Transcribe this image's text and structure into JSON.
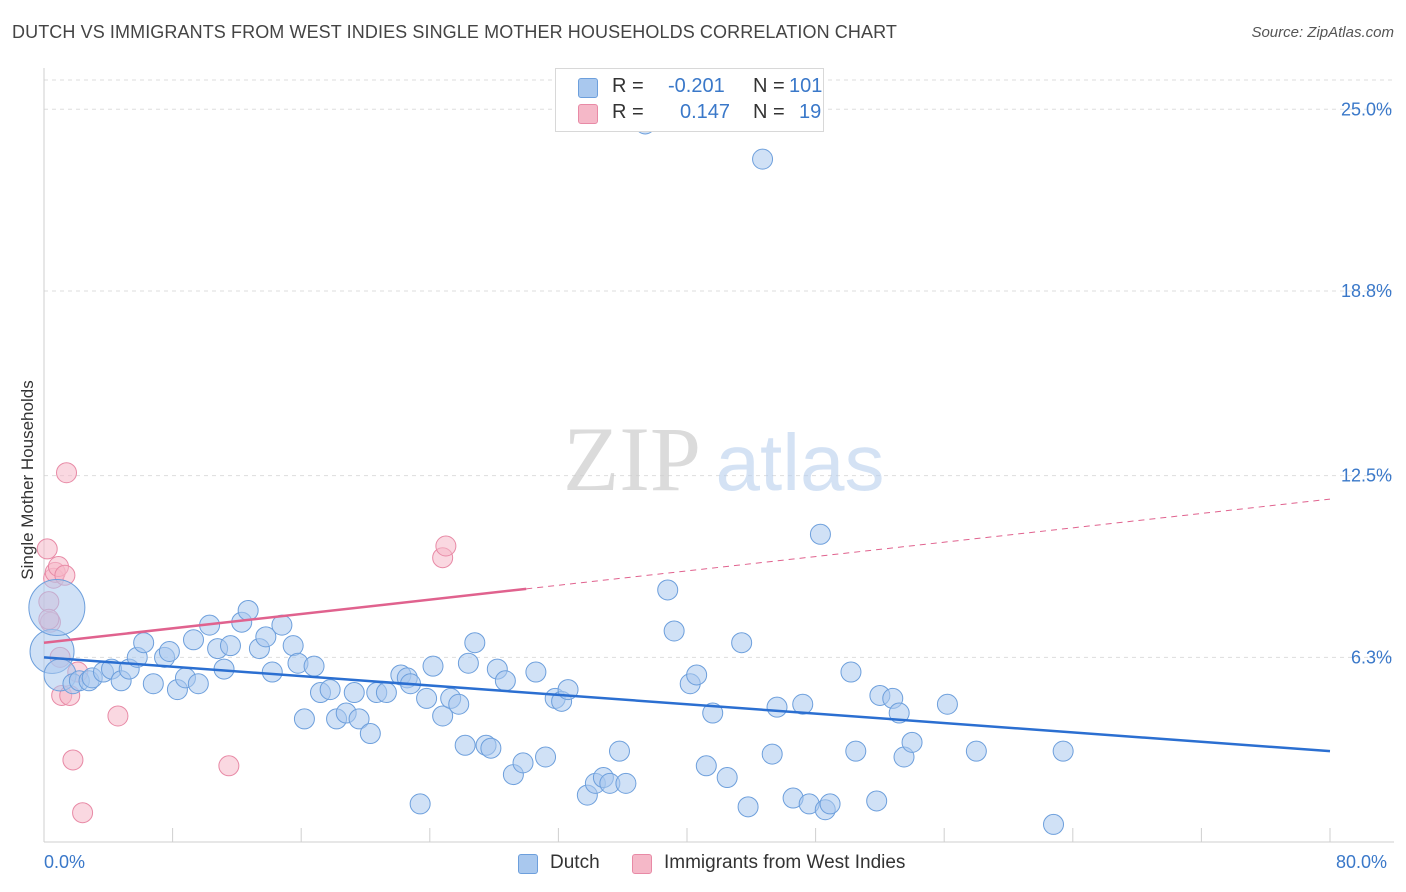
{
  "title": "DUTCH VS IMMIGRANTS FROM WEST INDIES SINGLE MOTHER HOUSEHOLDS CORRELATION CHART",
  "source": "Source: ZipAtlas.com",
  "watermark": {
    "zip": "ZIP",
    "atlas": "atlas"
  },
  "colors": {
    "dutch_fill": "#a9c8ee",
    "dutch_stroke": "#6d9fdc",
    "dutch_line": "#2b6fd1",
    "wi_fill": "#f5b8c8",
    "wi_stroke": "#e88aa6",
    "wi_line": "#e0628e",
    "grid": "#dddddd",
    "tick_label": "#3a78c9"
  },
  "legend_top": {
    "rows": [
      {
        "r_label": "R =",
        "r_value": "-0.201",
        "n_label": "N =",
        "n_value": "101"
      },
      {
        "r_label": "R =",
        "r_value": "0.147",
        "n_label": "N =",
        "n_value": "19"
      }
    ]
  },
  "legend_bottom": {
    "dutch": "Dutch",
    "west_indies": "Immigrants from West Indies"
  },
  "x_labels": {
    "left": "0.0%",
    "right": "80.0%"
  },
  "chart_data": {
    "type": "scatter",
    "ylabel": "Single Mother Households",
    "xlabel": "",
    "xlim": [
      0,
      80
    ],
    "ylim": [
      0,
      26
    ],
    "y_ticks": [
      {
        "value": 25.0,
        "label": "25.0%"
      },
      {
        "value": 18.8,
        "label": "18.8%"
      },
      {
        "value": 12.5,
        "label": "12.5%"
      },
      {
        "value": 6.3,
        "label": "6.3%"
      }
    ],
    "grid": true,
    "legend_position": "top-center",
    "series": [
      {
        "name": "Dutch",
        "r": -0.201,
        "n": 101,
        "trend": {
          "x": [
            0,
            80
          ],
          "y": [
            6.3,
            3.1
          ]
        },
        "points": [
          [
            0.5,
            6.5,
            22
          ],
          [
            0.8,
            8.0,
            28
          ],
          [
            1.0,
            5.7,
            16
          ],
          [
            1.8,
            5.4,
            10
          ],
          [
            2.2,
            5.5,
            10
          ],
          [
            2.8,
            5.5,
            10
          ],
          [
            3.0,
            5.6,
            10
          ],
          [
            3.7,
            5.8,
            10
          ],
          [
            4.2,
            5.9,
            10
          ],
          [
            4.8,
            5.5,
            10
          ],
          [
            5.3,
            5.9,
            10
          ],
          [
            5.8,
            6.3,
            10
          ],
          [
            6.2,
            6.8,
            10
          ],
          [
            6.8,
            5.4,
            10
          ],
          [
            7.5,
            6.3,
            10
          ],
          [
            7.8,
            6.5,
            10
          ],
          [
            8.3,
            5.2,
            10
          ],
          [
            8.8,
            5.6,
            10
          ],
          [
            9.3,
            6.9,
            10
          ],
          [
            9.6,
            5.4,
            10
          ],
          [
            10.3,
            7.4,
            10
          ],
          [
            10.8,
            6.6,
            10
          ],
          [
            11.2,
            5.9,
            10
          ],
          [
            11.6,
            6.7,
            10
          ],
          [
            12.3,
            7.5,
            10
          ],
          [
            12.7,
            7.9,
            10
          ],
          [
            13.4,
            6.6,
            10
          ],
          [
            13.8,
            7.0,
            10
          ],
          [
            14.2,
            5.8,
            10
          ],
          [
            14.8,
            7.4,
            10
          ],
          [
            15.5,
            6.7,
            10
          ],
          [
            15.8,
            6.1,
            10
          ],
          [
            16.2,
            4.2,
            10
          ],
          [
            16.8,
            6.0,
            10
          ],
          [
            17.2,
            5.1,
            10
          ],
          [
            17.8,
            5.2,
            10
          ],
          [
            18.2,
            4.2,
            10
          ],
          [
            18.8,
            4.4,
            10
          ],
          [
            19.3,
            5.1,
            10
          ],
          [
            19.6,
            4.2,
            10
          ],
          [
            20.3,
            3.7,
            10
          ],
          [
            20.7,
            5.1,
            10
          ],
          [
            21.3,
            5.1,
            10
          ],
          [
            22.2,
            5.7,
            10
          ],
          [
            22.6,
            5.6,
            10
          ],
          [
            22.8,
            5.4,
            10
          ],
          [
            23.4,
            1.3,
            10
          ],
          [
            23.8,
            4.9,
            10
          ],
          [
            24.2,
            6.0,
            10
          ],
          [
            24.8,
            4.3,
            10
          ],
          [
            25.3,
            4.9,
            10
          ],
          [
            25.8,
            4.7,
            10
          ],
          [
            26.2,
            3.3,
            10
          ],
          [
            26.4,
            6.1,
            10
          ],
          [
            26.8,
            6.8,
            10
          ],
          [
            27.5,
            3.3,
            10
          ],
          [
            27.8,
            3.2,
            10
          ],
          [
            28.2,
            5.9,
            10
          ],
          [
            28.7,
            5.5,
            10
          ],
          [
            29.2,
            2.3,
            10
          ],
          [
            29.8,
            2.7,
            10
          ],
          [
            30.6,
            5.8,
            10
          ],
          [
            31.2,
            2.9,
            10
          ],
          [
            31.8,
            4.9,
            10
          ],
          [
            32.2,
            4.8,
            10
          ],
          [
            32.6,
            5.2,
            10
          ],
          [
            33.8,
            1.6,
            10
          ],
          [
            34.3,
            2.0,
            10
          ],
          [
            34.8,
            2.2,
            10
          ],
          [
            35.2,
            2.0,
            10
          ],
          [
            35.8,
            3.1,
            10
          ],
          [
            36.2,
            2.0,
            10
          ],
          [
            37.4,
            24.5,
            10
          ],
          [
            38.8,
            8.6,
            10
          ],
          [
            39.2,
            7.2,
            10
          ],
          [
            40.2,
            5.4,
            10
          ],
          [
            40.6,
            5.7,
            10
          ],
          [
            41.2,
            2.6,
            10
          ],
          [
            41.6,
            4.4,
            10
          ],
          [
            42.5,
            2.2,
            10
          ],
          [
            43.4,
            6.8,
            10
          ],
          [
            43.8,
            1.2,
            10
          ],
          [
            44.7,
            23.3,
            10
          ],
          [
            45.3,
            3.0,
            10
          ],
          [
            45.6,
            4.6,
            10
          ],
          [
            46.6,
            1.5,
            10
          ],
          [
            47.2,
            4.7,
            10
          ],
          [
            47.6,
            1.3,
            10
          ],
          [
            48.6,
            1.1,
            10
          ],
          [
            48.9,
            1.3,
            10
          ],
          [
            50.2,
            5.8,
            10
          ],
          [
            50.5,
            3.1,
            10
          ],
          [
            51.8,
            1.4,
            10
          ],
          [
            52.0,
            5.0,
            10
          ],
          [
            52.8,
            4.9,
            10
          ],
          [
            53.2,
            4.4,
            10
          ],
          [
            53.5,
            2.9,
            10
          ],
          [
            54.0,
            3.4,
            10
          ],
          [
            56.2,
            4.7,
            10
          ],
          [
            58.0,
            3.1,
            10
          ],
          [
            62.8,
            0.6,
            10
          ],
          [
            63.4,
            3.1,
            10
          ],
          [
            48.3,
            10.5,
            10
          ]
        ]
      },
      {
        "name": "Immigrants from West Indies",
        "r": 0.147,
        "n": 19,
        "trend": {
          "x": [
            0,
            80
          ],
          "y": [
            6.8,
            11.7
          ],
          "solid_until_x": 30
        },
        "points": [
          [
            0.2,
            10.0,
            10
          ],
          [
            0.3,
            8.2,
            10
          ],
          [
            0.4,
            7.5,
            10
          ],
          [
            0.6,
            9.0,
            10
          ],
          [
            0.7,
            9.2,
            10
          ],
          [
            0.9,
            9.4,
            10
          ],
          [
            1.0,
            6.3,
            10
          ],
          [
            1.1,
            5.0,
            10
          ],
          [
            1.3,
            9.1,
            10
          ],
          [
            1.4,
            12.6,
            10
          ],
          [
            1.6,
            5.0,
            10
          ],
          [
            1.8,
            2.8,
            10
          ],
          [
            2.1,
            5.8,
            10
          ],
          [
            2.4,
            1.0,
            10
          ],
          [
            4.6,
            4.3,
            10
          ],
          [
            11.5,
            2.6,
            10
          ],
          [
            24.8,
            9.7,
            10
          ],
          [
            25.0,
            10.1,
            10
          ],
          [
            0.3,
            7.6,
            10
          ]
        ]
      }
    ]
  }
}
